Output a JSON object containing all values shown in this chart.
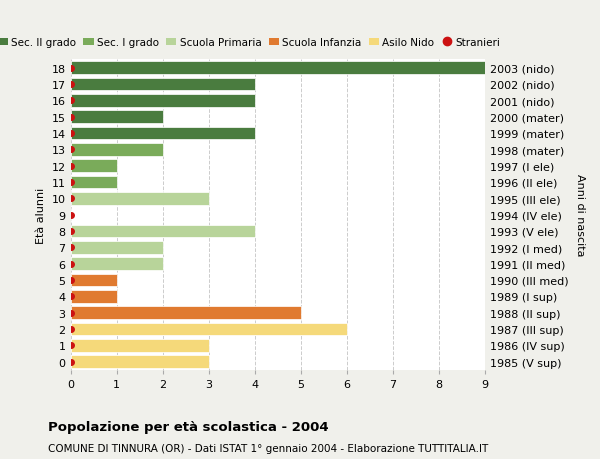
{
  "ages": [
    18,
    17,
    16,
    15,
    14,
    13,
    12,
    11,
    10,
    9,
    8,
    7,
    6,
    5,
    4,
    3,
    2,
    1,
    0
  ],
  "years": [
    "1985 (V sup)",
    "1986 (IV sup)",
    "1987 (III sup)",
    "1988 (II sup)",
    "1989 (I sup)",
    "1990 (III med)",
    "1991 (II med)",
    "1992 (I med)",
    "1993 (V ele)",
    "1994 (IV ele)",
    "1995 (III ele)",
    "1996 (II ele)",
    "1997 (I ele)",
    "1998 (mater)",
    "1999 (mater)",
    "2000 (mater)",
    "2001 (nido)",
    "2002 (nido)",
    "2003 (nido)"
  ],
  "values": [
    9,
    4,
    4,
    2,
    4,
    2,
    1,
    1,
    3,
    0,
    4,
    2,
    2,
    1,
    1,
    5,
    6,
    3,
    3
  ],
  "colors": [
    "#4a7c3f",
    "#4a7c3f",
    "#4a7c3f",
    "#4a7c3f",
    "#4a7c3f",
    "#7aab5a",
    "#7aab5a",
    "#7aab5a",
    "#b8d49a",
    "#b8d49a",
    "#b8d49a",
    "#b8d49a",
    "#b8d49a",
    "#e07a30",
    "#e07a30",
    "#e07a30",
    "#f5d97a",
    "#f5d97a",
    "#f5d97a"
  ],
  "legend_labels": [
    "Sec. II grado",
    "Sec. I grado",
    "Scuola Primaria",
    "Scuola Infanzia",
    "Asilo Nido",
    "Stranieri"
  ],
  "legend_colors": [
    "#4a7c3f",
    "#7aab5a",
    "#b8d49a",
    "#e07a30",
    "#f5d97a",
    "#cc1111"
  ],
  "dot_color": "#cc1111",
  "title": "Popolazione per età scolastica - 2004",
  "subtitle": "COMUNE DI TINNURA (OR) - Dati ISTAT 1° gennaio 2004 - Elaborazione TUTTITALIA.IT",
  "ylabel_left": "Età alunni",
  "ylabel_right": "Anni di nascita",
  "xlim": [
    0,
    9
  ],
  "xticks": [
    0,
    1,
    2,
    3,
    4,
    5,
    6,
    7,
    8,
    9
  ],
  "bar_height": 0.78,
  "background_color": "#f0f0eb",
  "plot_bg_color": "#ffffff",
  "grid_color": "#cccccc"
}
